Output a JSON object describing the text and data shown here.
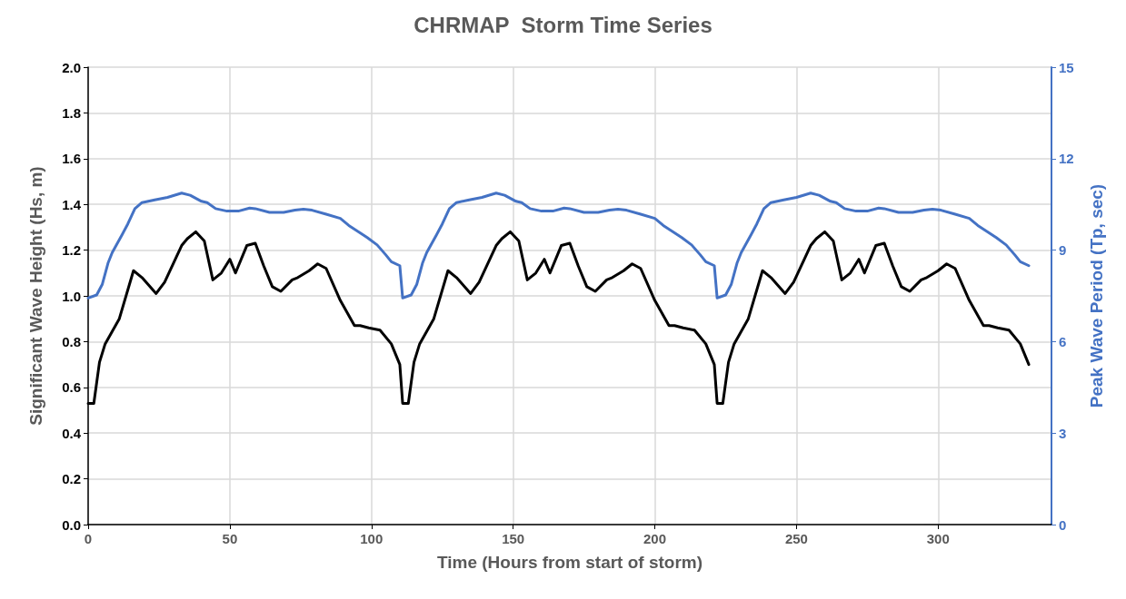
{
  "chart_data": {
    "type": "line",
    "title": "CHRMAP  Storm Time Series",
    "xlabel": "Time (Hours from start of storm)",
    "ylabel": "Significant Wave Height (Hs, m)",
    "y2label": "Peak Wave Period (Tp, sec)",
    "xlim": [
      0,
      340
    ],
    "xticks": [
      0,
      50,
      100,
      150,
      200,
      250,
      300
    ],
    "ylim": [
      0,
      2
    ],
    "yticks": [
      {
        "value": 0,
        "label": "0.0"
      },
      0.2,
      0.4,
      0.6,
      0.8,
      {
        "value": 1,
        "label": "1.0"
      },
      1.2,
      1.4,
      1.6,
      1.8,
      {
        "value": 2,
        "label": "2.0"
      }
    ],
    "y2lim": [
      0,
      15
    ],
    "y2ticks": [
      0,
      3,
      6,
      9,
      12,
      15
    ],
    "grid": true,
    "marker": "none",
    "line_style": "solid",
    "series": [
      {
        "color": "#000000",
        "x": [
          0,
          2,
          4,
          6,
          11,
          16,
          19,
          24,
          27,
          33,
          35,
          38,
          41,
          44,
          47,
          50,
          52,
          56,
          59,
          62,
          65,
          68,
          72,
          74,
          78,
          81,
          84,
          89,
          94,
          96,
          99,
          103,
          107,
          110,
          111,
          113,
          115,
          117,
          122,
          127,
          130,
          135,
          138,
          144,
          146,
          149,
          152,
          155,
          158,
          161,
          163,
          167,
          170,
          173,
          176,
          179,
          183,
          185,
          189,
          192,
          195,
          200,
          205,
          207,
          210,
          214,
          218,
          221,
          222,
          224,
          226,
          228,
          233,
          238,
          241,
          246,
          249,
          255,
          257,
          260,
          263,
          266,
          269,
          272,
          274,
          278,
          281,
          284,
          287,
          290,
          294,
          296,
          300,
          303,
          306,
          311,
          316,
          318,
          321,
          325,
          329,
          332
        ],
        "values": [
          0.53,
          0.53,
          0.71,
          0.79,
          0.9,
          1.11,
          1.08,
          1.01,
          1.06,
          1.22,
          1.25,
          1.28,
          1.24,
          1.07,
          1.1,
          1.16,
          1.1,
          1.22,
          1.23,
          1.13,
          1.04,
          1.02,
          1.07,
          1.08,
          1.11,
          1.14,
          1.12,
          0.98,
          0.87,
          0.87,
          0.86,
          0.85,
          0.79,
          0.7,
          0.53,
          0.53,
          0.71,
          0.79,
          0.9,
          1.11,
          1.08,
          1.01,
          1.06,
          1.22,
          1.25,
          1.28,
          1.24,
          1.07,
          1.1,
          1.16,
          1.1,
          1.22,
          1.23,
          1.13,
          1.04,
          1.02,
          1.07,
          1.08,
          1.11,
          1.14,
          1.12,
          0.98,
          0.87,
          0.87,
          0.86,
          0.85,
          0.79,
          0.7,
          0.53,
          0.53,
          0.71,
          0.79,
          0.9,
          1.11,
          1.08,
          1.01,
          1.06,
          1.22,
          1.25,
          1.28,
          1.24,
          1.07,
          1.1,
          1.16,
          1.1,
          1.22,
          1.23,
          1.13,
          1.04,
          1.02,
          1.07,
          1.08,
          1.11,
          1.14,
          1.12,
          0.98,
          0.87,
          0.87,
          0.86,
          0.85,
          0.79,
          0.7
        ]
      },
      {
        "color": "#4472c4",
        "axis": "y2",
        "x": [
          0,
          3,
          5,
          7,
          8.5,
          12,
          14,
          16.5,
          19,
          23.5,
          28,
          33,
          36,
          40,
          42,
          45,
          49,
          53,
          57,
          59,
          64,
          69,
          73,
          76,
          79,
          84,
          89,
          92,
          98.5,
          102,
          105,
          107,
          110,
          111,
          114,
          116,
          118,
          119.5,
          123,
          125,
          127.5,
          130,
          134.5,
          139,
          144,
          147,
          151,
          153,
          156,
          160,
          164,
          168,
          170,
          175,
          180,
          184,
          187,
          190,
          195,
          200,
          203,
          209.5,
          213,
          216,
          218,
          221,
          222,
          225,
          227,
          229,
          230.5,
          234,
          236,
          238.5,
          241,
          245.5,
          250,
          255,
          258,
          262,
          264,
          267,
          271,
          275,
          279,
          281,
          286,
          291,
          295,
          298,
          301,
          306,
          311,
          314,
          320.5,
          324,
          327,
          329,
          332
        ],
        "values": [
          7.43,
          7.53,
          7.88,
          8.57,
          8.92,
          9.51,
          9.86,
          10.36,
          10.56,
          10.65,
          10.73,
          10.87,
          10.8,
          10.6,
          10.56,
          10.36,
          10.28,
          10.28,
          10.38,
          10.36,
          10.24,
          10.24,
          10.31,
          10.34,
          10.31,
          10.18,
          10.04,
          9.81,
          9.41,
          9.17,
          8.85,
          8.62,
          8.49,
          7.43,
          7.53,
          7.88,
          8.57,
          8.92,
          9.51,
          9.86,
          10.36,
          10.56,
          10.65,
          10.73,
          10.87,
          10.8,
          10.6,
          10.56,
          10.36,
          10.28,
          10.28,
          10.38,
          10.36,
          10.24,
          10.24,
          10.31,
          10.34,
          10.31,
          10.18,
          10.04,
          9.81,
          9.41,
          9.17,
          8.85,
          8.62,
          8.49,
          7.43,
          7.53,
          7.88,
          8.57,
          8.92,
          9.51,
          9.86,
          10.36,
          10.56,
          10.65,
          10.73,
          10.87,
          10.8,
          10.6,
          10.56,
          10.36,
          10.28,
          10.28,
          10.38,
          10.36,
          10.24,
          10.24,
          10.31,
          10.34,
          10.31,
          10.18,
          10.04,
          9.81,
          9.41,
          9.17,
          8.85,
          8.62,
          8.49
        ]
      }
    ]
  }
}
